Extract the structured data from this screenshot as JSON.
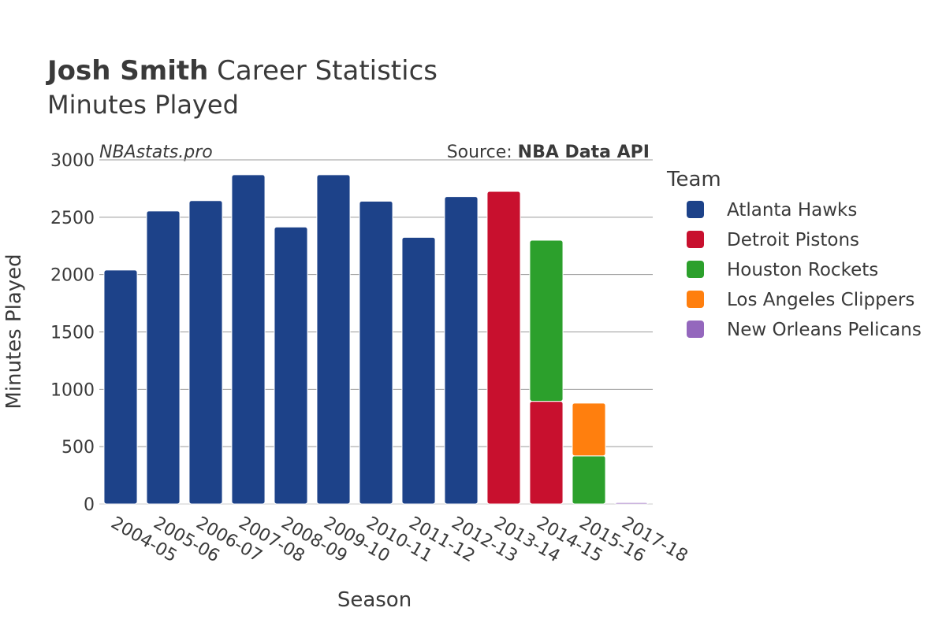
{
  "header": {
    "title_bold": "Josh Smith",
    "title_rest": " Career Statistics",
    "subtitle": "Minutes Played"
  },
  "watermark": "NBAstats.pro",
  "source": {
    "prefix": "Source: ",
    "name": "NBA Data API"
  },
  "legend": {
    "title": "Team"
  },
  "colors": {
    "Atlanta Hawks": "#1d4289",
    "Detroit Pistons": "#c8102e",
    "Houston Rockets": "#2ca02c",
    "Los Angeles Clippers": "#ff7f0e",
    "New Orleans Pelicans": "#9467bd"
  },
  "chart_data": {
    "type": "bar",
    "stacked": true,
    "xlabel": "Season",
    "ylabel": "Minutes Played",
    "ylim": [
      0,
      3000
    ],
    "yticks": [
      0,
      500,
      1000,
      1500,
      2000,
      2500,
      3000
    ],
    "grid": true,
    "legend_position": "right",
    "categories": [
      "2004-05",
      "2005-06",
      "2006-07",
      "2007-08",
      "2008-09",
      "2009-10",
      "2010-11",
      "2011-12",
      "2012-13",
      "2013-14",
      "2014-15",
      "2015-16",
      "2017-18"
    ],
    "series": [
      {
        "name": "Atlanta Hawks",
        "values": [
          2040,
          2555,
          2645,
          2870,
          2415,
          2870,
          2640,
          2325,
          2680,
          0,
          0,
          0,
          0
        ]
      },
      {
        "name": "Detroit Pistons",
        "values": [
          0,
          0,
          0,
          0,
          0,
          0,
          0,
          0,
          0,
          2725,
          895,
          0,
          0
        ]
      },
      {
        "name": "Houston Rockets",
        "values": [
          0,
          0,
          0,
          0,
          0,
          0,
          0,
          0,
          0,
          0,
          1405,
          420,
          0
        ]
      },
      {
        "name": "Los Angeles Clippers",
        "values": [
          0,
          0,
          0,
          0,
          0,
          0,
          0,
          0,
          0,
          0,
          0,
          460,
          0
        ]
      },
      {
        "name": "New Orleans Pelicans",
        "values": [
          0,
          0,
          0,
          0,
          0,
          0,
          0,
          0,
          0,
          0,
          0,
          0,
          12
        ]
      }
    ]
  }
}
